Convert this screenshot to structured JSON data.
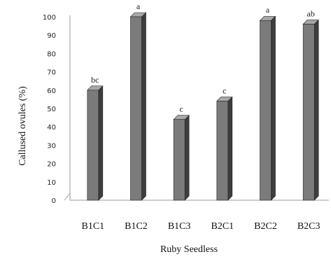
{
  "chart_data": {
    "type": "bar",
    "title": "",
    "xlabel": "Ruby Seedless",
    "ylabel": "Callused ovules (%)",
    "ylim": [
      0,
      100
    ],
    "yticks": [
      "0",
      "10",
      "20",
      "30",
      "40",
      "50",
      "60",
      "70",
      "80",
      "90",
      "100"
    ],
    "categories": [
      "B1C1",
      "B1C2",
      "B1C3",
      "B2C1",
      "B2C2",
      "B2C3"
    ],
    "values": [
      60,
      100,
      44,
      54,
      98,
      96
    ],
    "significance_labels": [
      "bc",
      "a",
      "c",
      "c",
      "a",
      "ab"
    ],
    "grid": false,
    "bar_style": "3d",
    "colors": {
      "bar_front": "#7b7b7b",
      "bar_side": "#3d3d3d",
      "bar_top": "#a8a8a8",
      "axis": "#9a9a9a"
    }
  }
}
